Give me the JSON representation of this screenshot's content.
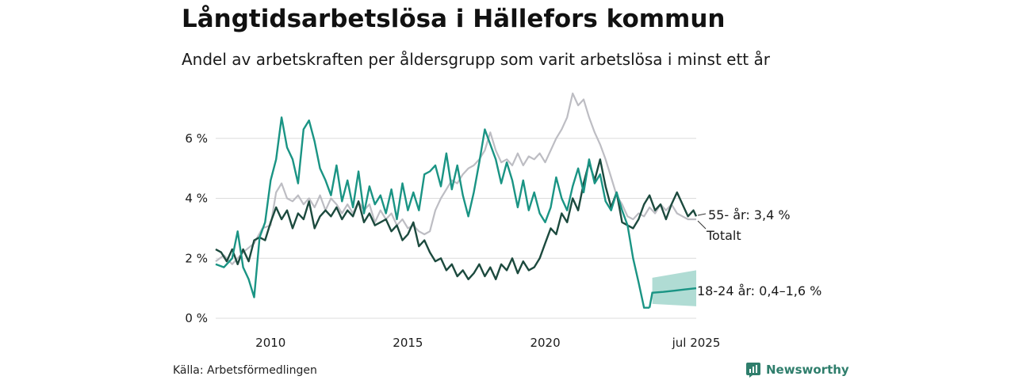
{
  "header": {
    "title": "Långtidsarbetslösa i Hällefors kommun",
    "subtitle": "Andel av arbetskraften per åldersgrupp som varit arbetslösa i minst ett år"
  },
  "footer": {
    "source": "Källa: Arbetsförmedlingen",
    "brand": "Newsworthy",
    "brand_icon": "bar-chart-icon"
  },
  "colors": {
    "total": "#bdbdc3",
    "age55": "#1c4a3e",
    "age1824": "#1a9484",
    "band": "#a7d8cf",
    "grid": "#dcdcdc"
  },
  "chart_data": {
    "type": "line",
    "x_unit": "year",
    "xlim": [
      2008.0,
      2025.5
    ],
    "ylim": [
      0,
      7.5
    ],
    "ylabel": "",
    "y_ticks": [
      {
        "value": 0,
        "label": "0 %"
      },
      {
        "value": 2,
        "label": "2 %"
      },
      {
        "value": 4,
        "label": "4 %"
      },
      {
        "value": 6,
        "label": "6 %"
      }
    ],
    "x_ticks": [
      {
        "value": 2010,
        "label": "2010"
      },
      {
        "value": 2015,
        "label": "2015"
      },
      {
        "value": 2020,
        "label": "2020"
      },
      {
        "value": 2025.5,
        "label": "jul 2025"
      }
    ],
    "grid": "horizontal",
    "series": [
      {
        "key": "total",
        "name": "Totalt",
        "points": [
          [
            2008.0,
            1.9
          ],
          [
            2008.3,
            2.1
          ],
          [
            2008.6,
            1.8
          ],
          [
            2009.0,
            2.2
          ],
          [
            2009.4,
            2.5
          ],
          [
            2009.7,
            3.0
          ],
          [
            2010.0,
            3.1
          ],
          [
            2010.2,
            4.2
          ],
          [
            2010.4,
            4.5
          ],
          [
            2010.6,
            4.0
          ],
          [
            2010.8,
            3.9
          ],
          [
            2011.0,
            4.1
          ],
          [
            2011.2,
            3.8
          ],
          [
            2011.4,
            4.0
          ],
          [
            2011.6,
            3.7
          ],
          [
            2011.8,
            4.1
          ],
          [
            2012.0,
            3.6
          ],
          [
            2012.2,
            4.0
          ],
          [
            2012.4,
            3.8
          ],
          [
            2012.6,
            3.5
          ],
          [
            2012.8,
            3.8
          ],
          [
            2013.0,
            3.5
          ],
          [
            2013.2,
            3.9
          ],
          [
            2013.4,
            3.6
          ],
          [
            2013.6,
            3.8
          ],
          [
            2013.8,
            3.2
          ],
          [
            2014.0,
            3.6
          ],
          [
            2014.2,
            3.3
          ],
          [
            2014.4,
            3.5
          ],
          [
            2014.6,
            3.1
          ],
          [
            2014.8,
            3.3
          ],
          [
            2015.0,
            3.0
          ],
          [
            2015.2,
            3.1
          ],
          [
            2015.4,
            2.9
          ],
          [
            2015.6,
            2.8
          ],
          [
            2015.8,
            2.9
          ],
          [
            2016.0,
            3.6
          ],
          [
            2016.2,
            4.0
          ],
          [
            2016.4,
            4.3
          ],
          [
            2016.6,
            4.6
          ],
          [
            2016.8,
            4.5
          ],
          [
            2017.0,
            4.8
          ],
          [
            2017.2,
            5.0
          ],
          [
            2017.4,
            5.1
          ],
          [
            2017.6,
            5.3
          ],
          [
            2017.8,
            5.6
          ],
          [
            2018.0,
            6.2
          ],
          [
            2018.2,
            5.6
          ],
          [
            2018.4,
            5.2
          ],
          [
            2018.6,
            5.3
          ],
          [
            2018.8,
            5.1
          ],
          [
            2019.0,
            5.5
          ],
          [
            2019.2,
            5.1
          ],
          [
            2019.4,
            5.4
          ],
          [
            2019.6,
            5.3
          ],
          [
            2019.8,
            5.5
          ],
          [
            2020.0,
            5.2
          ],
          [
            2020.2,
            5.6
          ],
          [
            2020.4,
            6.0
          ],
          [
            2020.6,
            6.3
          ],
          [
            2020.8,
            6.7
          ],
          [
            2021.0,
            7.5
          ],
          [
            2021.2,
            7.1
          ],
          [
            2021.4,
            7.3
          ],
          [
            2021.6,
            6.7
          ],
          [
            2021.8,
            6.2
          ],
          [
            2022.0,
            5.8
          ],
          [
            2022.2,
            5.3
          ],
          [
            2022.4,
            4.7
          ],
          [
            2022.6,
            4.1
          ],
          [
            2022.8,
            3.8
          ],
          [
            2023.0,
            3.4
          ],
          [
            2023.2,
            3.3
          ],
          [
            2023.4,
            3.5
          ],
          [
            2023.6,
            3.4
          ],
          [
            2023.8,
            3.7
          ],
          [
            2024.0,
            3.5
          ],
          [
            2024.2,
            3.8
          ],
          [
            2024.4,
            3.6
          ],
          [
            2024.6,
            3.8
          ],
          [
            2024.8,
            3.5
          ],
          [
            2025.0,
            3.4
          ],
          [
            2025.2,
            3.3
          ],
          [
            2025.4,
            3.3
          ],
          [
            2025.5,
            3.3
          ]
        ]
      },
      {
        "key": "age55",
        "name": "55- år",
        "points": [
          [
            2008.0,
            2.3
          ],
          [
            2008.2,
            2.2
          ],
          [
            2008.4,
            1.9
          ],
          [
            2008.6,
            2.3
          ],
          [
            2008.8,
            1.8
          ],
          [
            2009.0,
            2.3
          ],
          [
            2009.2,
            1.9
          ],
          [
            2009.4,
            2.6
          ],
          [
            2009.6,
            2.7
          ],
          [
            2009.8,
            2.6
          ],
          [
            2010.0,
            3.2
          ],
          [
            2010.2,
            3.7
          ],
          [
            2010.4,
            3.3
          ],
          [
            2010.6,
            3.6
          ],
          [
            2010.8,
            3.0
          ],
          [
            2011.0,
            3.5
          ],
          [
            2011.2,
            3.3
          ],
          [
            2011.4,
            3.9
          ],
          [
            2011.6,
            3.0
          ],
          [
            2011.8,
            3.4
          ],
          [
            2012.0,
            3.6
          ],
          [
            2012.2,
            3.4
          ],
          [
            2012.4,
            3.7
          ],
          [
            2012.6,
            3.3
          ],
          [
            2012.8,
            3.6
          ],
          [
            2013.0,
            3.4
          ],
          [
            2013.2,
            3.9
          ],
          [
            2013.4,
            3.2
          ],
          [
            2013.6,
            3.5
          ],
          [
            2013.8,
            3.1
          ],
          [
            2014.0,
            3.2
          ],
          [
            2014.2,
            3.3
          ],
          [
            2014.4,
            2.9
          ],
          [
            2014.6,
            3.1
          ],
          [
            2014.8,
            2.6
          ],
          [
            2015.0,
            2.8
          ],
          [
            2015.2,
            3.2
          ],
          [
            2015.4,
            2.4
          ],
          [
            2015.6,
            2.6
          ],
          [
            2015.8,
            2.2
          ],
          [
            2016.0,
            1.9
          ],
          [
            2016.2,
            2.0
          ],
          [
            2016.4,
            1.6
          ],
          [
            2016.6,
            1.8
          ],
          [
            2016.8,
            1.4
          ],
          [
            2017.0,
            1.6
          ],
          [
            2017.2,
            1.3
          ],
          [
            2017.4,
            1.5
          ],
          [
            2017.6,
            1.8
          ],
          [
            2017.8,
            1.4
          ],
          [
            2018.0,
            1.7
          ],
          [
            2018.2,
            1.3
          ],
          [
            2018.4,
            1.8
          ],
          [
            2018.6,
            1.6
          ],
          [
            2018.8,
            2.0
          ],
          [
            2019.0,
            1.5
          ],
          [
            2019.2,
            1.9
          ],
          [
            2019.4,
            1.6
          ],
          [
            2019.6,
            1.7
          ],
          [
            2019.8,
            2.0
          ],
          [
            2020.0,
            2.5
          ],
          [
            2020.2,
            3.0
          ],
          [
            2020.4,
            2.8
          ],
          [
            2020.6,
            3.5
          ],
          [
            2020.8,
            3.2
          ],
          [
            2021.0,
            4.0
          ],
          [
            2021.2,
            3.6
          ],
          [
            2021.4,
            4.5
          ],
          [
            2021.6,
            5.2
          ],
          [
            2021.8,
            4.6
          ],
          [
            2022.0,
            5.3
          ],
          [
            2022.2,
            4.4
          ],
          [
            2022.4,
            3.7
          ],
          [
            2022.6,
            4.2
          ],
          [
            2022.8,
            3.2
          ],
          [
            2023.0,
            3.1
          ],
          [
            2023.2,
            3.0
          ],
          [
            2023.4,
            3.3
          ],
          [
            2023.6,
            3.8
          ],
          [
            2023.8,
            4.1
          ],
          [
            2024.0,
            3.6
          ],
          [
            2024.2,
            3.8
          ],
          [
            2024.4,
            3.3
          ],
          [
            2024.6,
            3.8
          ],
          [
            2024.8,
            4.2
          ],
          [
            2025.0,
            3.8
          ],
          [
            2025.2,
            3.4
          ],
          [
            2025.4,
            3.6
          ],
          [
            2025.5,
            3.4
          ]
        ]
      },
      {
        "key": "age1824",
        "name": "18-24 år",
        "points": [
          [
            2008.0,
            1.8
          ],
          [
            2008.3,
            1.7
          ],
          [
            2008.6,
            2.0
          ],
          [
            2008.8,
            2.9
          ],
          [
            2009.0,
            1.7
          ],
          [
            2009.2,
            1.3
          ],
          [
            2009.4,
            0.7
          ],
          [
            2009.6,
            2.7
          ],
          [
            2009.8,
            3.2
          ],
          [
            2010.0,
            4.6
          ],
          [
            2010.2,
            5.3
          ],
          [
            2010.4,
            6.7
          ],
          [
            2010.6,
            5.7
          ],
          [
            2010.8,
            5.3
          ],
          [
            2011.0,
            4.5
          ],
          [
            2011.2,
            6.3
          ],
          [
            2011.4,
            6.6
          ],
          [
            2011.6,
            5.9
          ],
          [
            2011.8,
            5.0
          ],
          [
            2012.0,
            4.6
          ],
          [
            2012.2,
            4.1
          ],
          [
            2012.4,
            5.1
          ],
          [
            2012.6,
            3.9
          ],
          [
            2012.8,
            4.6
          ],
          [
            2013.0,
            3.7
          ],
          [
            2013.2,
            4.9
          ],
          [
            2013.4,
            3.5
          ],
          [
            2013.6,
            4.4
          ],
          [
            2013.8,
            3.8
          ],
          [
            2014.0,
            4.1
          ],
          [
            2014.2,
            3.5
          ],
          [
            2014.4,
            4.3
          ],
          [
            2014.6,
            3.3
          ],
          [
            2014.8,
            4.5
          ],
          [
            2015.0,
            3.6
          ],
          [
            2015.2,
            4.2
          ],
          [
            2015.4,
            3.6
          ],
          [
            2015.6,
            4.8
          ],
          [
            2015.8,
            4.9
          ],
          [
            2016.0,
            5.1
          ],
          [
            2016.2,
            4.4
          ],
          [
            2016.4,
            5.5
          ],
          [
            2016.6,
            4.3
          ],
          [
            2016.8,
            5.1
          ],
          [
            2017.0,
            4.1
          ],
          [
            2017.2,
            3.4
          ],
          [
            2017.4,
            4.2
          ],
          [
            2017.6,
            5.2
          ],
          [
            2017.8,
            6.3
          ],
          [
            2018.0,
            5.8
          ],
          [
            2018.2,
            5.3
          ],
          [
            2018.4,
            4.5
          ],
          [
            2018.6,
            5.2
          ],
          [
            2018.8,
            4.6
          ],
          [
            2019.0,
            3.7
          ],
          [
            2019.2,
            4.6
          ],
          [
            2019.4,
            3.6
          ],
          [
            2019.6,
            4.2
          ],
          [
            2019.8,
            3.5
          ],
          [
            2020.0,
            3.2
          ],
          [
            2020.2,
            3.7
          ],
          [
            2020.4,
            4.7
          ],
          [
            2020.6,
            4.0
          ],
          [
            2020.8,
            3.6
          ],
          [
            2021.0,
            4.4
          ],
          [
            2021.2,
            5.0
          ],
          [
            2021.4,
            4.2
          ],
          [
            2021.6,
            5.3
          ],
          [
            2021.8,
            4.5
          ],
          [
            2022.0,
            4.8
          ],
          [
            2022.2,
            3.9
          ],
          [
            2022.4,
            3.6
          ],
          [
            2022.6,
            4.2
          ],
          [
            2022.8,
            3.6
          ],
          [
            2023.0,
            3.1
          ],
          [
            2023.2,
            2.0
          ],
          [
            2023.4,
            1.2
          ],
          [
            2023.6,
            0.35
          ],
          [
            2023.8,
            0.35
          ]
        ]
      }
    ],
    "forecast": {
      "series_key": "age1824",
      "x_start": 2023.8,
      "x_end": 2025.5,
      "central": [
        [
          2023.8,
          0.35
        ],
        [
          2023.9,
          0.85
        ],
        [
          2024.3,
          0.88
        ],
        [
          2024.7,
          0.92
        ],
        [
          2025.1,
          0.96
        ],
        [
          2025.5,
          1.0
        ]
      ],
      "lower": [
        [
          2023.9,
          0.48
        ],
        [
          2025.5,
          0.4
        ]
      ],
      "upper": [
        [
          2023.9,
          1.35
        ],
        [
          2025.5,
          1.6
        ]
      ]
    },
    "end_labels": [
      {
        "key": "age55",
        "text": "55- år: 3,4 %"
      },
      {
        "key": "total",
        "text": "Totalt"
      },
      {
        "key": "age1824",
        "text": "18-24 år: 0,4–1,6 %"
      }
    ]
  }
}
